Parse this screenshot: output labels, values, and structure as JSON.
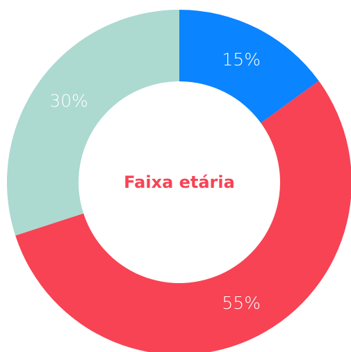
{
  "chart_data": {
    "type": "donut",
    "title": "Faixa etária",
    "values": [
      15,
      55,
      30
    ],
    "value_labels": [
      "15%",
      "55%",
      "30%"
    ],
    "colors": [
      "#0a84ff",
      "#f74354",
      "#acd9d0"
    ]
  }
}
